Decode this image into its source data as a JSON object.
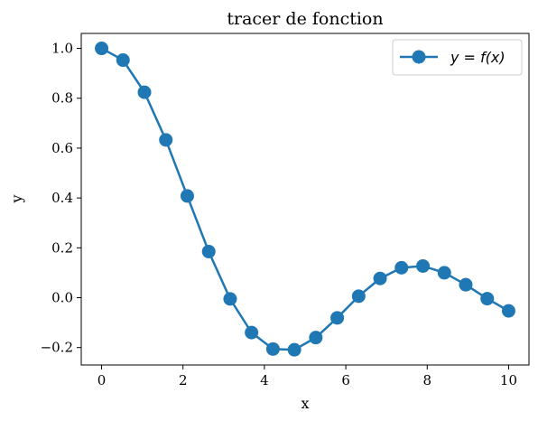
{
  "chart_data": {
    "type": "line",
    "title": "tracer de fonction",
    "xlabel": "x",
    "ylabel": "y",
    "xlim": [
      -0.5,
      10.5
    ],
    "ylim": [
      -0.27,
      1.06
    ],
    "xticks": [
      0,
      2,
      4,
      6,
      8,
      10
    ],
    "yticks": [
      -0.2,
      0.0,
      0.2,
      0.4,
      0.6,
      0.8,
      1.0
    ],
    "xtick_labels": [
      "0",
      "2",
      "4",
      "6",
      "8",
      "10"
    ],
    "ytick_labels": [
      "−0.2",
      "0.0",
      "0.2",
      "0.4",
      "0.6",
      "0.8",
      "1.0"
    ],
    "grid": false,
    "legend": {
      "placement": "top-right"
    },
    "series": [
      {
        "name": "y = f(x)",
        "color": "#1f77b4",
        "marker": "circle",
        "x": [
          0,
          0.526,
          1.053,
          1.579,
          2.105,
          2.632,
          3.158,
          3.684,
          4.211,
          4.737,
          5.263,
          5.789,
          6.316,
          6.842,
          7.368,
          7.895,
          8.421,
          8.947,
          9.474,
          10.0
        ],
        "y": [
          1.0,
          0.953,
          0.824,
          0.633,
          0.408,
          0.185,
          -0.005,
          -0.14,
          -0.206,
          -0.209,
          -0.16,
          -0.081,
          0.006,
          0.077,
          0.12,
          0.127,
          0.1,
          0.052,
          -0.004,
          -0.053
        ]
      }
    ]
  }
}
